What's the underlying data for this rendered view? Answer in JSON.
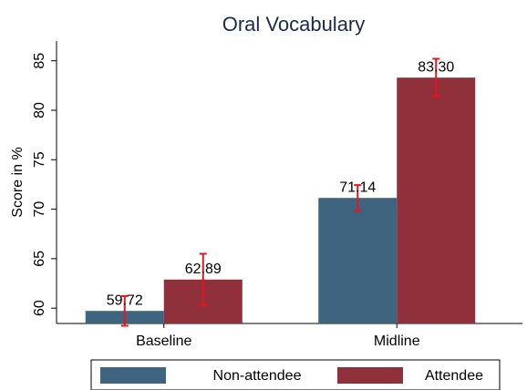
{
  "chart_data": {
    "type": "bar",
    "title": "Oral Vocabulary",
    "y_label": "Score in %",
    "categories": [
      "Baseline",
      "Midline"
    ],
    "series": [
      {
        "name": "Non-attendee",
        "color": "#3e6480",
        "values": [
          59.72,
          71.14
        ],
        "value_labels": [
          "59.72",
          "71.14"
        ],
        "errors": [
          1.5,
          1.3
        ]
      },
      {
        "name": "Attendee",
        "color": "#8f303b",
        "values": [
          62.89,
          83.3
        ],
        "value_labels": [
          "62.89",
          "83.30"
        ],
        "errors": [
          2.6,
          1.9
        ]
      }
    ],
    "error_color": "#e8141c",
    "ylim": [
      58.45,
      87
    ],
    "yticks": [
      60,
      65,
      70,
      75,
      80,
      85
    ]
  }
}
